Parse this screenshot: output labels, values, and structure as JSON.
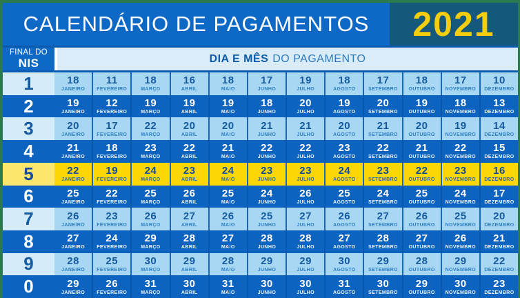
{
  "header": {
    "title": "CALENDÁRIO DE PAGAMENTOS",
    "year": "2021"
  },
  "subheader": {
    "nis_line1": "FINAL DO",
    "nis_line2": "NIS",
    "dia_label_bold": "DIA E MÊS",
    "dia_label_rest": "DO PAGAMENTO"
  },
  "colors": {
    "frame_green": "#2b7a4e",
    "header_blue": "#0e68c5",
    "year_box_teal": "#14587c",
    "year_yellow": "#f4cd0d",
    "light_row_blue": "#a8d7f4",
    "dark_row_blue": "#0d63c0",
    "highlight_yellow": "#fdd704",
    "text_navy": "#155a9e"
  },
  "table": {
    "months": [
      "JANEIRO",
      "FEVEREIRO",
      "MARÇO",
      "ABRIL",
      "MAIO",
      "JUNHO",
      "JULHO",
      "AGOSTO",
      "SETEMBRO",
      "OUTUBRO",
      "NOVEMBRO",
      "DEZEMBRO"
    ],
    "rows": [
      {
        "digit": "1",
        "shade": "light",
        "days": [
          18,
          11,
          18,
          16,
          18,
          17,
          19,
          18,
          17,
          18,
          17,
          10
        ]
      },
      {
        "digit": "2",
        "shade": "dark",
        "days": [
          19,
          12,
          19,
          19,
          19,
          18,
          20,
          19,
          20,
          19,
          18,
          13
        ]
      },
      {
        "digit": "3",
        "shade": "light",
        "days": [
          20,
          17,
          22,
          20,
          20,
          21,
          21,
          20,
          21,
          20,
          19,
          14
        ]
      },
      {
        "digit": "4",
        "shade": "dark",
        "days": [
          21,
          18,
          23,
          22,
          21,
          22,
          22,
          23,
          22,
          21,
          22,
          15
        ]
      },
      {
        "digit": "5",
        "shade": "yellow",
        "days": [
          22,
          19,
          24,
          23,
          24,
          23,
          23,
          24,
          23,
          22,
          23,
          16
        ]
      },
      {
        "digit": "6",
        "shade": "dark",
        "days": [
          25,
          22,
          25,
          26,
          25,
          24,
          26,
          25,
          24,
          25,
          24,
          17
        ]
      },
      {
        "digit": "7",
        "shade": "light",
        "days": [
          26,
          23,
          26,
          27,
          26,
          25,
          27,
          26,
          27,
          26,
          25,
          20
        ]
      },
      {
        "digit": "8",
        "shade": "dark",
        "days": [
          27,
          24,
          29,
          28,
          27,
          28,
          28,
          27,
          28,
          27,
          26,
          21
        ]
      },
      {
        "digit": "9",
        "shade": "light",
        "days": [
          28,
          25,
          30,
          29,
          28,
          29,
          29,
          30,
          29,
          28,
          29,
          22
        ]
      },
      {
        "digit": "0",
        "shade": "dark",
        "days": [
          29,
          26,
          31,
          30,
          31,
          30,
          30,
          31,
          30,
          29,
          30,
          23
        ]
      }
    ]
  }
}
